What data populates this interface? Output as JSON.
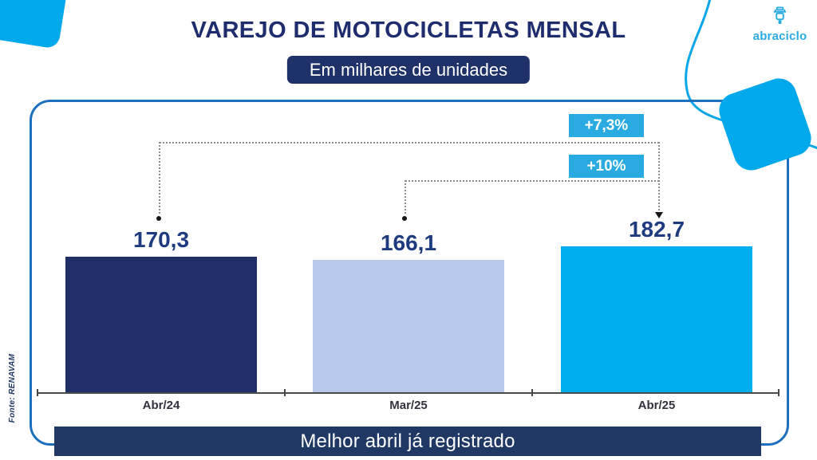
{
  "page": {
    "title": "VAREJO DE MOTOCICLETAS MENSAL",
    "subtitle": "Em milhares de unidades",
    "source": "Fonte: RENAVAM",
    "footer_banner": "Melhor abril já registrado",
    "logo_text": "abraciclo"
  },
  "colors": {
    "accent_cyan": "#29ABE2",
    "decor_cyan": "#00A8EC",
    "panel_border": "#1C6FBF",
    "navy_dark": "#1F3169",
    "banner_navy": "#203864",
    "bar_abr24": "#1F2E66",
    "bar_mar25": "#B7C8E9",
    "bar_abr25": "#00AEEF",
    "value_text": "#1F3B80"
  },
  "chart_data": {
    "type": "bar",
    "title": "VAREJO DE MOTOCICLETAS MENSAL",
    "subtitle": "Em milhares de unidades",
    "unit": "milhares de unidades",
    "categories": [
      "Abr/24",
      "Mar/25",
      "Abr/25"
    ],
    "values": [
      170.3,
      166.1,
      182.7
    ],
    "value_labels": [
      "170,3",
      "166,1",
      "182,7"
    ],
    "bar_colors": [
      "#1F2E66",
      "#B7C8E9",
      "#00AEEF"
    ],
    "ylim": [
      0,
      190
    ],
    "grid": false,
    "legend": "none",
    "annotations": [
      {
        "label": "+7,3%",
        "from": "Abr/24",
        "to": "Abr/25"
      },
      {
        "label": "+10%",
        "from": "Mar/25",
        "to": "Abr/25"
      }
    ],
    "callout": "Melhor abril já registrado",
    "source": "Fonte: RENAVAM"
  }
}
